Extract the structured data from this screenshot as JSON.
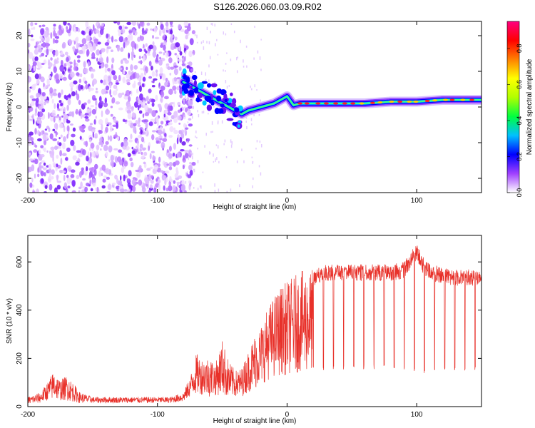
{
  "title": "S126.2026.060.03.09.R02",
  "chart_data": [
    {
      "type": "heatmap",
      "name": "spectrogram",
      "title": "S126.2026.060.03.09.R02",
      "xlabel": "Height of straight line (km)",
      "ylabel": "Frequency (Hz)",
      "xlim": [
        -200,
        150
      ],
      "ylim": [
        -24,
        24
      ],
      "xticks": [
        -200,
        -100,
        0,
        100
      ],
      "yticks": [
        -20,
        -10,
        0,
        10,
        20
      ],
      "ridge": {
        "x": [
          -80,
          -70,
          -60,
          -50,
          -40,
          -35,
          -30,
          -20,
          -10,
          -5,
          0,
          5,
          10,
          20,
          40,
          60,
          80,
          100,
          120,
          150
        ],
        "freq": [
          7,
          5,
          3,
          1,
          -1,
          -2,
          -1,
          0,
          1,
          2,
          3,
          0.5,
          1,
          1,
          1,
          1,
          1.5,
          1.5,
          2,
          2
        ]
      },
      "noise_region_x": [
        -200,
        -80
      ],
      "colorbar": {
        "label": "Normalized spectral amplitude",
        "range": [
          0,
          0.95
        ],
        "ticks": [
          "0.0",
          "0.2",
          "0.4",
          "0.6",
          "0.8"
        ],
        "colors": [
          "#ffffff",
          "#a040ff",
          "#0000ff",
          "#00c0ff",
          "#00ff40",
          "#b0ff00",
          "#ffff00",
          "#ff8000",
          "#ff0000",
          "#ff0080"
        ]
      }
    },
    {
      "type": "line",
      "name": "snr",
      "xlabel": "Height of straight line (km)",
      "ylabel": "SNR (10 * v/v)",
      "xlim": [
        -200,
        150
      ],
      "ylim": [
        0,
        710
      ],
      "xticks": [
        -200,
        -100,
        0,
        100
      ],
      "yticks": [
        0,
        200,
        400,
        600
      ],
      "color": "#e8312a",
      "series": [
        {
          "name": "SNR envelope",
          "x": [
            -200,
            -190,
            -185,
            -180,
            -175,
            -170,
            -165,
            -160,
            -150,
            -140,
            -120,
            -100,
            -90,
            -80,
            -75,
            -70,
            -65,
            -60,
            -55,
            -50,
            -45,
            -40,
            -35,
            -30,
            -25,
            -20,
            -15,
            -10,
            -5,
            0,
            5,
            10,
            15,
            20,
            25,
            30,
            40,
            50,
            60,
            70,
            80,
            90,
            95,
            100,
            105,
            110,
            120,
            130,
            140,
            150
          ],
          "high": [
            40,
            60,
            100,
            150,
            110,
            130,
            100,
            60,
            40,
            40,
            40,
            40,
            40,
            60,
            120,
            220,
            200,
            210,
            180,
            280,
            190,
            150,
            160,
            230,
            300,
            340,
            410,
            460,
            500,
            520,
            540,
            560,
            570,
            570,
            580,
            590,
            590,
            590,
            590,
            590,
            590,
            600,
            640,
            680,
            620,
            590,
            580,
            570,
            570,
            560
          ],
          "low": [
            10,
            15,
            25,
            30,
            25,
            25,
            20,
            15,
            15,
            15,
            15,
            15,
            15,
            20,
            40,
            50,
            50,
            40,
            45,
            50,
            30,
            40,
            40,
            60,
            70,
            90,
            110,
            120,
            130,
            130,
            140,
            140,
            140,
            150,
            150,
            150,
            150,
            155,
            155,
            155,
            150,
            150,
            150,
            140,
            130,
            150,
            150,
            150,
            150,
            150
          ]
        }
      ]
    }
  ]
}
